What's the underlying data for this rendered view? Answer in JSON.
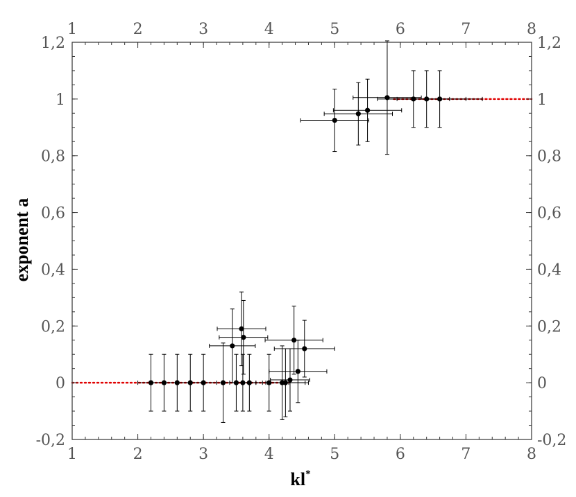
{
  "chart_data": {
    "type": "scatter",
    "title": "",
    "xlabel": "kl",
    "xlabel_superscript": "*",
    "ylabel": "exponent a",
    "xlim": [
      1,
      8
    ],
    "ylim": [
      -0.2,
      1.2
    ],
    "x_ticks": [
      "1",
      "2",
      "3",
      "4",
      "5",
      "6",
      "7",
      "8"
    ],
    "y_ticks": [
      "-0,2",
      "0",
      "0,2",
      "0,4",
      "0,6",
      "0,8",
      "1",
      "1,2"
    ],
    "y_tick_values": [
      -0.2,
      0,
      0.2,
      0.4,
      0.6,
      0.8,
      1.0,
      1.2
    ],
    "x_minor_step": 0.2,
    "y_minor_step": 0.05,
    "mirror_axes": true,
    "grid": false,
    "reference_lines": [
      {
        "x": [
          1,
          4.3
        ],
        "y": 0,
        "color": "#e00000",
        "style": "dotted"
      },
      {
        "x": [
          5.9,
          8
        ],
        "y": 1,
        "color": "#e00000",
        "style": "dotted"
      }
    ],
    "series": [
      {
        "marker_color": "#000000",
        "points": [
          {
            "x": 2.2,
            "y": 0,
            "xerr": 0.2,
            "yerr": 0.1
          },
          {
            "x": 2.4,
            "y": 0,
            "xerr": 0.2,
            "yerr": 0.1
          },
          {
            "x": 2.6,
            "y": 0,
            "xerr": 0.2,
            "yerr": 0.1
          },
          {
            "x": 2.8,
            "y": 0,
            "xerr": 0.2,
            "yerr": 0.1
          },
          {
            "x": 3.0,
            "y": 0,
            "xerr": 0.2,
            "yerr": 0.1
          },
          {
            "x": 3.3,
            "y": 0,
            "xerr": 0.3,
            "yerr": 0.14
          },
          {
            "x": 3.5,
            "y": 0,
            "xerr": 0.2,
            "yerr": 0.1
          },
          {
            "x": 3.6,
            "y": 0,
            "xerr": 0.2,
            "yerr": 0.1
          },
          {
            "x": 3.7,
            "y": 0,
            "xerr": 0.2,
            "yerr": 0.1
          },
          {
            "x": 4.0,
            "y": 0,
            "xerr": 0.3,
            "yerr": 0.1
          },
          {
            "x": 4.2,
            "y": 0,
            "xerr": 0.4,
            "yerr": 0.13
          },
          {
            "x": 4.25,
            "y": 0,
            "xerr": 0.3,
            "yerr": 0.12
          },
          {
            "x": 4.32,
            "y": 0.01,
            "xerr": 0.3,
            "yerr": 0.11
          },
          {
            "x": 3.44,
            "y": 0.13,
            "xerr": 0.35,
            "yerr": 0.13
          },
          {
            "x": 3.58,
            "y": 0.19,
            "xerr": 0.37,
            "yerr": 0.13
          },
          {
            "x": 3.61,
            "y": 0.16,
            "xerr": 0.37,
            "yerr": 0.13
          },
          {
            "x": 4.38,
            "y": 0.15,
            "xerr": 0.44,
            "yerr": 0.12
          },
          {
            "x": 4.44,
            "y": 0.04,
            "xerr": 0.44,
            "yerr": 0.11
          },
          {
            "x": 4.54,
            "y": 0.12,
            "xerr": 0.46,
            "yerr": 0.1
          },
          {
            "x": 5.0,
            "y": 0.925,
            "xerr": 0.52,
            "yerr": 0.11
          },
          {
            "x": 5.36,
            "y": 0.948,
            "xerr": 0.52,
            "yerr": 0.11
          },
          {
            "x": 5.5,
            "y": 0.96,
            "xerr": 0.52,
            "yerr": 0.11
          },
          {
            "x": 5.8,
            "y": 1.005,
            "xerr": 0.52,
            "yerr": 0.2
          },
          {
            "x": 6.2,
            "y": 1.0,
            "xerr": 0.55,
            "yerr": 0.1
          },
          {
            "x": 6.4,
            "y": 1.0,
            "xerr": 0.6,
            "yerr": 0.1
          },
          {
            "x": 6.6,
            "y": 1.0,
            "xerr": 0.65,
            "yerr": 0.1
          }
        ]
      }
    ]
  }
}
